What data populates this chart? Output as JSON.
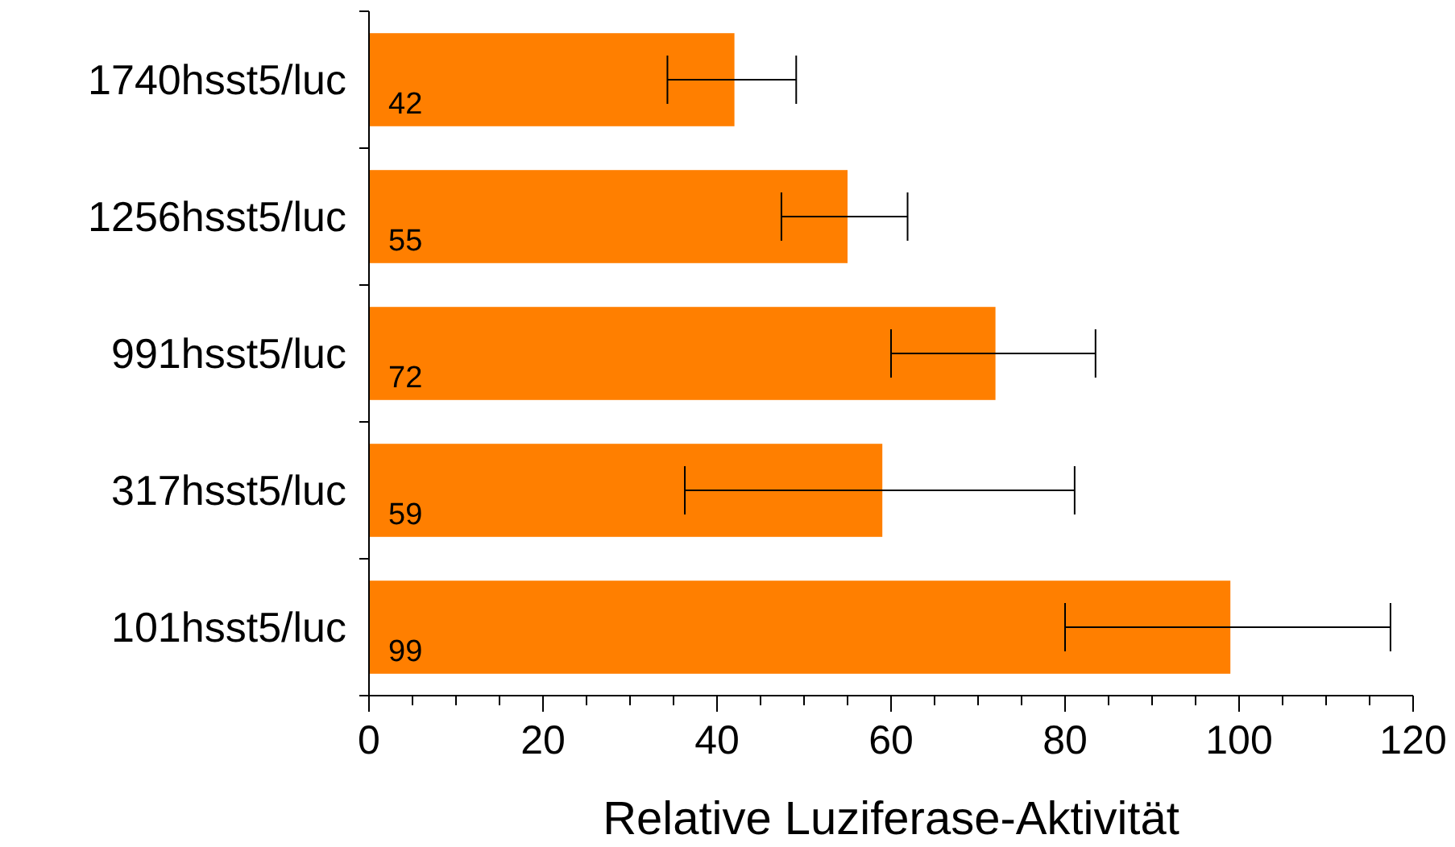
{
  "chart_data": {
    "type": "bar",
    "orientation": "horizontal",
    "xlabel": "Relative Luziferase-Aktivität",
    "categories": [
      "1740hsst5/luc",
      "1256hsst5/luc",
      "991hsst5/luc",
      "317hsst5/luc",
      "101hsst5/luc"
    ],
    "values": [
      42,
      55,
      72,
      59,
      99
    ],
    "errors": [
      [
        34.3,
        49.1
      ],
      [
        47.4,
        61.9
      ],
      [
        60,
        83.5
      ],
      [
        36.3,
        81.1
      ],
      [
        80,
        117.4
      ]
    ],
    "color": "#ff7f00",
    "data_labels": true,
    "xlim": [
      0,
      120
    ],
    "xticks": [
      0,
      {
        "value": 5,
        "label": null
      },
      20,
      {
        "value": 10,
        "label": null
      },
      {
        "value": 15,
        "label": null
      },
      {
        "value": 25,
        "label": null
      },
      {
        "value": 30,
        "label": null
      },
      {
        "value": 35,
        "label": null
      },
      40,
      {
        "value": 45,
        "label": null
      },
      {
        "value": 50,
        "label": null
      },
      {
        "value": 55,
        "label": null
      },
      60,
      {
        "value": 65,
        "label": null
      },
      {
        "value": 70,
        "label": null
      },
      {
        "value": 75,
        "label": null
      },
      80,
      {
        "value": 85,
        "label": null
      },
      {
        "value": 90,
        "label": null
      },
      {
        "value": 95,
        "label": null
      },
      100,
      {
        "value": 105,
        "label": null
      },
      {
        "value": 110,
        "label": null
      },
      {
        "value": 115,
        "label": null
      },
      120
    ],
    "grid": false
  }
}
